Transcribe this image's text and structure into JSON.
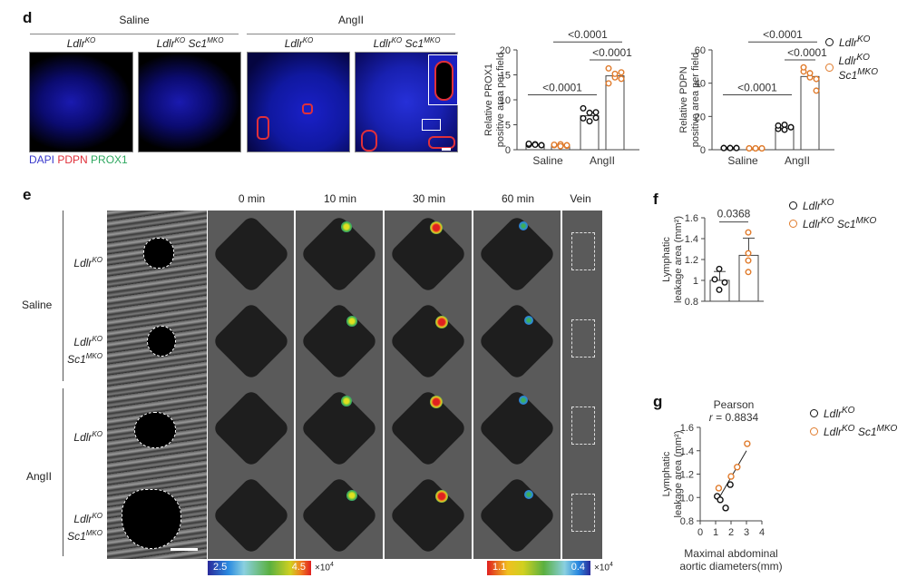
{
  "panel_d": {
    "label": "d",
    "group_headers": [
      "Saline",
      "AngII"
    ],
    "image_columns": [
      {
        "gene": "Ldlr",
        "sup": "KO",
        "gene2": "",
        "sup2": ""
      },
      {
        "gene": "Ldlr",
        "sup": "KO",
        "gene2": "Sc1",
        "sup2": "MKO"
      },
      {
        "gene": "Ldlr",
        "sup": "KO",
        "gene2": "",
        "sup2": ""
      },
      {
        "gene": "Ldlr",
        "sup": "KO",
        "gene2": "Sc1",
        "sup2": "MKO"
      }
    ],
    "stain_legend": [
      {
        "text": "DAPI",
        "color": "#3a3acc"
      },
      {
        "text": "PDPN",
        "color": "#e0303a"
      },
      {
        "text": "PROX1",
        "color": "#2fa860"
      }
    ]
  },
  "legend": {
    "series": [
      {
        "gene": "Ldlr",
        "sup": "KO",
        "gene2": "",
        "sup2": "",
        "color": "#111111"
      },
      {
        "gene": "Ldlr",
        "sup": "KO",
        "gene2": "Sc1",
        "sup2": "MKO",
        "color": "#e07b2c"
      }
    ]
  },
  "panel_e": {
    "label": "e",
    "row_groups": [
      "Saline",
      "AngII"
    ],
    "row_labels": [
      {
        "gene": "Ldlr",
        "sup": "KO",
        "gene2": "",
        "sup2": ""
      },
      {
        "gene": "Ldlr",
        "sup": "KO",
        "gene2": "Sc1",
        "sup2": "MKO"
      },
      {
        "gene": "Ldlr",
        "sup": "KO",
        "gene2": "",
        "sup2": ""
      },
      {
        "gene": "Ldlr",
        "sup": "KO",
        "gene2": "Sc1",
        "sup2": "MKO"
      }
    ],
    "time_columns": [
      "0 min",
      "10 min",
      "30 min",
      "60 min",
      "Vein"
    ],
    "colorbar_left": {
      "min": "2.5",
      "max": "4.5",
      "unit": "×10",
      "exp": "4"
    },
    "colorbar_right": {
      "min": "1.1",
      "max": "0.4",
      "unit": "×10",
      "exp": "4"
    }
  },
  "panel_f": {
    "label": "f"
  },
  "panel_g": {
    "label": "g"
  },
  "chart_data": [
    {
      "id": "prox1",
      "type": "bar",
      "title": "",
      "ylabel": "Relative PROX1 positive area per field",
      "ylabel_lines": [
        "Relative PROX1",
        "positive area per field"
      ],
      "categories": [
        "Saline",
        "AngII"
      ],
      "ylim": [
        0,
        20
      ],
      "yticks": [
        0,
        5,
        10,
        15,
        20
      ],
      "series": [
        {
          "name": "LdlrKO",
          "values": [
            1.0,
            6.8
          ],
          "points": [
            [
              1.0,
              1.1,
              0.9,
              1.2,
              1.0,
              0.9
            ],
            [
              8.3,
              5.7,
              7.5,
              6.3,
              7.4,
              6.4
            ]
          ]
        },
        {
          "name": "LdlrKO Sc1MKO",
          "values": [
            0.9,
            14.8
          ],
          "points": [
            [
              0.9,
              1.1,
              0.8,
              1.0,
              0.7,
              0.9
            ],
            [
              16.3,
              14.5,
              15.5,
              13.3,
              15.2,
              14.2
            ]
          ]
        }
      ],
      "error_bars": {
        "AngII_LdlrKO_Sc1MKO_upper": 15.9
      },
      "annotations": [
        {
          "text": "<0.0001",
          "between": [
            "Saline LdlrKO",
            "AngII LdlrKO"
          ]
        },
        {
          "text": "<0.0001",
          "between": [
            "AngII LdlrKO",
            "AngII LdlrKO Sc1MKO"
          ]
        },
        {
          "text": "<0.0001",
          "between": [
            "Saline LdlrKO Sc1MKO",
            "AngII LdlrKO Sc1MKO"
          ]
        }
      ]
    },
    {
      "id": "pdpn",
      "type": "bar",
      "title": "",
      "ylabel": "Relative PDPN positive area per field",
      "ylabel_lines": [
        "Relative PDPN",
        "positive area per field"
      ],
      "categories": [
        "Saline",
        "AngII"
      ],
      "ylim": [
        0,
        60
      ],
      "yticks": [
        0,
        20,
        40,
        60
      ],
      "series": [
        {
          "name": "LdlrKO",
          "values": [
            1.0,
            13.0
          ],
          "points": [
            [
              1.0,
              1.0,
              1.0,
              1.0,
              1.0,
              1.0
            ],
            [
              12.5,
              15.0,
              13.5,
              14.5,
              12.0,
              13.5
            ]
          ]
        },
        {
          "name": "LdlrKO Sc1MKO",
          "values": [
            0.8,
            44.0
          ],
          "points": [
            [
              0.8,
              0.8,
              0.8,
              0.8,
              0.8,
              0.8
            ],
            [
              47.0,
              43.5,
              35.5,
              49.5,
              46.0,
              42.5
            ]
          ]
        }
      ],
      "error_bars": {
        "AngII_LdlrKO_Sc1MKO_upper": 48.5
      },
      "annotations": [
        {
          "text": "<0.0001",
          "between": [
            "Saline LdlrKO",
            "AngII LdlrKO"
          ]
        },
        {
          "text": "<0.0001",
          "between": [
            "AngII LdlrKO",
            "AngII LdlrKO Sc1MKO"
          ]
        },
        {
          "text": "<0.0001",
          "between": [
            "Saline LdlrKO Sc1MKO",
            "AngII LdlrKO Sc1MKO"
          ]
        }
      ]
    },
    {
      "id": "leakage",
      "type": "bar",
      "title": "",
      "ylabel": "Lymphatic leakage area (mm2)",
      "ylabel_lines": [
        "Lymphatic",
        "leakage area (mm²)"
      ],
      "categories": [
        "LdlrKO",
        "LdlrKO Sc1MKO"
      ],
      "ylim": [
        0.8,
        1.6
      ],
      "yticks": [
        0.8,
        1.0,
        1.2,
        1.4,
        1.6
      ],
      "values": [
        1.0,
        1.24
      ],
      "error_upper": [
        1.085,
        1.405
      ],
      "points": [
        [
          1.11,
          1.01,
          0.98,
          0.91
        ],
        [
          1.46,
          1.26,
          1.19,
          1.08
        ]
      ],
      "annotations": [
        {
          "text": "0.0368",
          "between": [
            "LdlrKO",
            "LdlrKO Sc1MKO"
          ]
        }
      ]
    },
    {
      "id": "correlation",
      "type": "scatter",
      "title": "Pearson",
      "subtitle": "r = 0.8834",
      "xlabel": "Maximal abdominal aortic diameters(mm)",
      "xlabel_lines": [
        "Maximal abdominal",
        "aortic diameters(mm)"
      ],
      "ylabel": "Lymphatic leakage area (mm2)",
      "ylabel_lines": [
        "Lymphatic",
        "leakage area (mm²)"
      ],
      "xlim": [
        0,
        4
      ],
      "ylim": [
        0.8,
        1.6
      ],
      "xticks": [
        0,
        1,
        2,
        3,
        4
      ],
      "yticks": [
        0.8,
        1.0,
        1.2,
        1.4,
        1.6
      ],
      "series": [
        {
          "name": "LdlrKO",
          "x": [
            1.1,
            1.3,
            1.65,
            1.95
          ],
          "y": [
            1.01,
            0.98,
            0.91,
            1.11
          ]
        },
        {
          "name": "LdlrKO Sc1MKO",
          "x": [
            1.2,
            2.0,
            2.4,
            3.05
          ],
          "y": [
            1.08,
            1.18,
            1.26,
            1.46
          ]
        }
      ],
      "fit_line": {
        "x": [
          1.2,
          3.0
        ],
        "y": [
          0.99,
          1.4
        ]
      }
    }
  ]
}
